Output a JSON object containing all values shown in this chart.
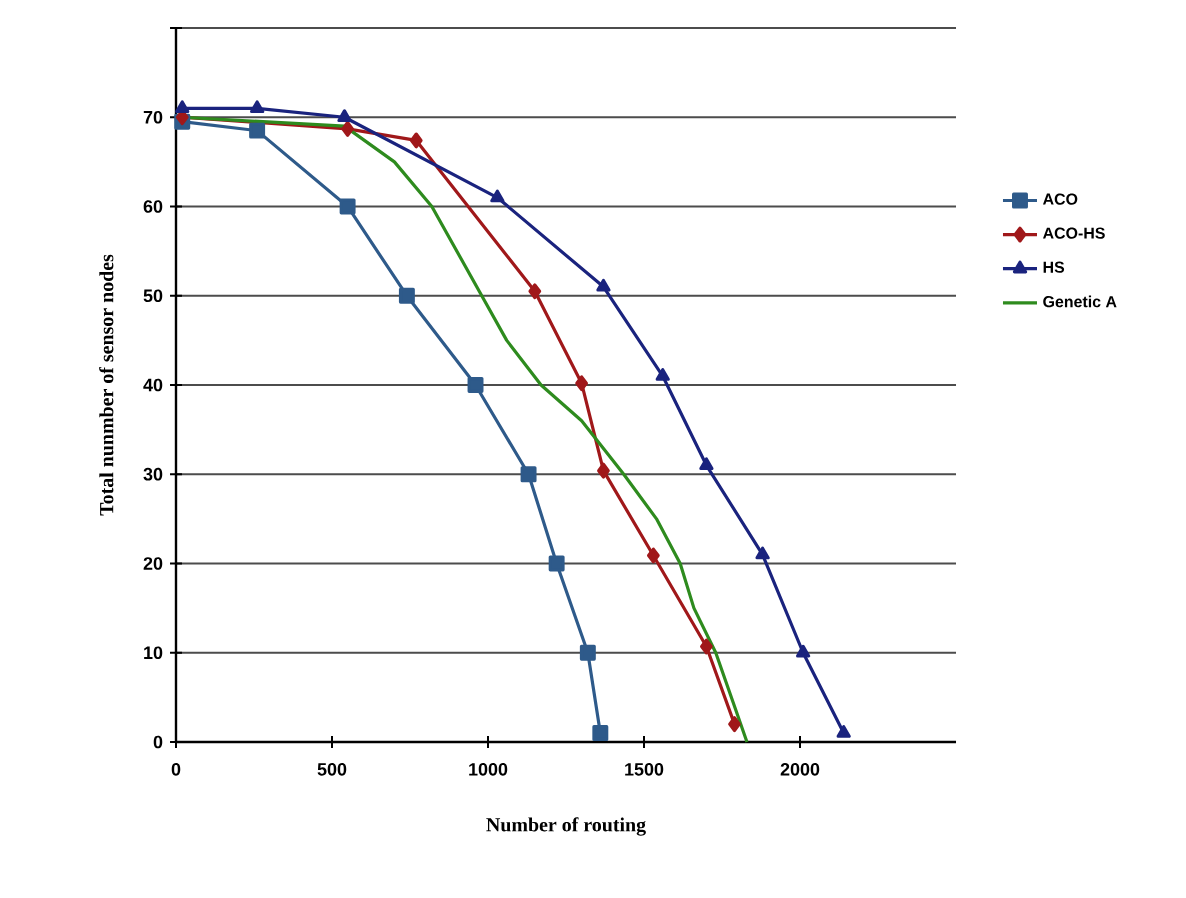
{
  "chart_data": {
    "type": "line",
    "xlabel": "Number of routing",
    "ylabel": "Total nunmber  of sensor nodes",
    "xlim": [
      0,
      2500
    ],
    "ylim": [
      0,
      80
    ],
    "xticks": [
      0,
      500,
      1000,
      1500,
      2000
    ],
    "yticks": [
      0,
      10,
      20,
      30,
      40,
      50,
      60,
      70,
      {
        "value": 80,
        "label": null
      }
    ],
    "grid": "y",
    "legend": "right",
    "line_style": "solid",
    "series": [
      {
        "name": "ACO",
        "color": "#2e5a8a",
        "marker": "square",
        "x": [
          20,
          260,
          550,
          740,
          960,
          1130,
          1220,
          1320,
          1360
        ],
        "values": [
          69.5,
          68.5,
          60,
          50,
          40,
          30,
          20,
          10,
          1
        ]
      },
      {
        "name": "ACO-HS",
        "color": "#a0181a",
        "marker": "diamond",
        "x": [
          20,
          550,
          770,
          1150,
          1300,
          1370,
          1530,
          1700,
          1790
        ],
        "values": [
          70,
          68.7,
          67.4,
          50.5,
          40.2,
          30.4,
          20.9,
          10.7,
          2
        ]
      },
      {
        "name": "HS",
        "color": "#1a237e",
        "marker": "triangle",
        "x": [
          20,
          260,
          540,
          1030,
          1370,
          1560,
          1700,
          1880,
          2010,
          2140
        ],
        "values": [
          71,
          71,
          70,
          61,
          51,
          41,
          31,
          21,
          10,
          1
        ]
      },
      {
        "name": "Genetic A",
        "color": "#2e8b1e",
        "marker": "none",
        "x": [
          20,
          540,
          700,
          820,
          980,
          1060,
          1170,
          1300,
          1435,
          1540,
          1616,
          1660,
          1730,
          1790,
          1830
        ],
        "values": [
          70,
          69,
          65,
          60,
          50,
          45,
          40,
          36,
          30,
          25,
          20,
          15,
          10,
          4,
          0
        ]
      }
    ]
  }
}
